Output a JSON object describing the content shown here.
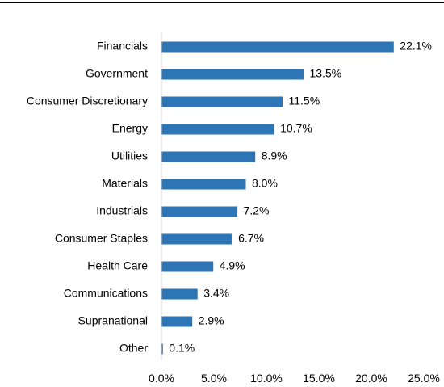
{
  "chart_data": {
    "type": "bar",
    "orientation": "horizontal",
    "title": "",
    "xlabel": "",
    "ylabel": "",
    "categories": [
      "Financials",
      "Government",
      "Consumer Discretionary",
      "Energy",
      "Utilities",
      "Materials",
      "Industrials",
      "Consumer Staples",
      "Health Care",
      "Communications",
      "Supranational",
      "Other"
    ],
    "values": [
      22.1,
      13.5,
      11.5,
      10.7,
      8.9,
      8.0,
      7.2,
      6.7,
      4.9,
      3.4,
      2.9,
      0.1
    ],
    "value_labels": [
      "22.1%",
      "13.5%",
      "11.5%",
      "10.7%",
      "8.9%",
      "8.0%",
      "7.2%",
      "6.7%",
      "4.9%",
      "3.4%",
      "2.9%",
      "0.1%"
    ],
    "xlim": [
      0,
      25
    ],
    "ticks": [
      0,
      5,
      10,
      15,
      20,
      25
    ],
    "tick_labels": [
      "0.0%",
      "5.0%",
      "10.0%",
      "15.0%",
      "20.0%",
      "25.0%"
    ],
    "bar_color": "#2e75b6",
    "axis_color": "#d9d9d9",
    "top_rule_color": "#000000",
    "grid": false,
    "legend": "none"
  }
}
